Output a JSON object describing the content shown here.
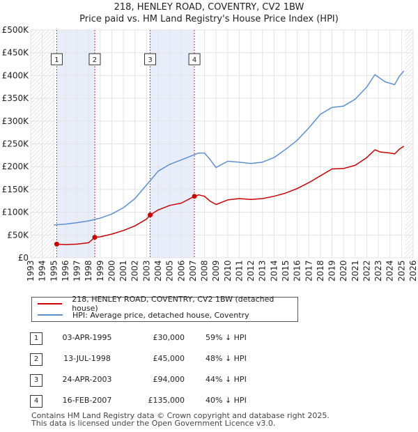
{
  "chart_data": {
    "type": "line",
    "title": "218, HENLEY ROAD, COVENTRY, CV2 1BW",
    "subtitle": "Price paid vs. HM Land Registry's House Price Index (HPI)",
    "xlim": [
      1993,
      2026
    ],
    "ylim": [
      0,
      500000
    ],
    "x_ticks": [
      1993,
      1994,
      1995,
      1996,
      1997,
      1998,
      1999,
      2000,
      2001,
      2002,
      2003,
      2004,
      2005,
      2006,
      2007,
      2008,
      2009,
      2010,
      2011,
      2012,
      2013,
      2014,
      2015,
      2016,
      2017,
      2018,
      2019,
      2020,
      2021,
      2022,
      2023,
      2024,
      2025,
      2026
    ],
    "y_ticks": [
      0,
      50000,
      100000,
      150000,
      200000,
      250000,
      300000,
      350000,
      400000,
      450000,
      500000
    ],
    "y_tick_labels": [
      "£0",
      "£50K",
      "£100K",
      "£150K",
      "£200K",
      "£250K",
      "£300K",
      "£350K",
      "£400K",
      "£450K",
      "£500K"
    ],
    "data_start": 1995.0,
    "data_end": 2025.3,
    "shaded_spans": [
      [
        1995.25,
        1998.53
      ],
      [
        2003.31,
        2007.13
      ]
    ],
    "series": [
      {
        "name": "218, HENLEY ROAD, COVENTRY, CV2 1BW (detached house)",
        "color": "#cc0000",
        "points": [
          [
            1995.25,
            30000
          ],
          [
            1996.0,
            29000
          ],
          [
            1997.0,
            30000
          ],
          [
            1998.0,
            33000
          ],
          [
            1998.53,
            45000
          ],
          [
            1999.0,
            46000
          ],
          [
            2000.0,
            52000
          ],
          [
            2001.0,
            60000
          ],
          [
            2002.0,
            70000
          ],
          [
            2003.0,
            85000
          ],
          [
            2003.31,
            94000
          ],
          [
            2004.0,
            105000
          ],
          [
            2005.0,
            115000
          ],
          [
            2006.0,
            120000
          ],
          [
            2007.13,
            135000
          ],
          [
            2007.5,
            138000
          ],
          [
            2008.0,
            135000
          ],
          [
            2008.5,
            124000
          ],
          [
            2009.0,
            117000
          ],
          [
            2009.5,
            122000
          ],
          [
            2010.0,
            127000
          ],
          [
            2011.0,
            130000
          ],
          [
            2012.0,
            128000
          ],
          [
            2013.0,
            130000
          ],
          [
            2014.0,
            135000
          ],
          [
            2015.0,
            142000
          ],
          [
            2016.0,
            152000
          ],
          [
            2017.0,
            165000
          ],
          [
            2018.0,
            180000
          ],
          [
            2019.0,
            195000
          ],
          [
            2020.0,
            196000
          ],
          [
            2021.0,
            203000
          ],
          [
            2022.0,
            220000
          ],
          [
            2022.7,
            237000
          ],
          [
            2023.2,
            232000
          ],
          [
            2023.6,
            231000
          ],
          [
            2024.0,
            230000
          ],
          [
            2024.4,
            228000
          ],
          [
            2024.8,
            238000
          ],
          [
            2025.2,
            245000
          ]
        ],
        "markers": [
          [
            1995.25,
            30000
          ],
          [
            1998.53,
            45000
          ],
          [
            2003.31,
            94000
          ],
          [
            2007.13,
            135000
          ]
        ]
      },
      {
        "name": "HPI: Average price, detached house, Coventry",
        "color": "#5b8fd1",
        "points": [
          [
            1995.0,
            72000
          ],
          [
            1996.0,
            74000
          ],
          [
            1997.0,
            77000
          ],
          [
            1998.0,
            81000
          ],
          [
            1999.0,
            87000
          ],
          [
            2000.0,
            96000
          ],
          [
            2001.0,
            110000
          ],
          [
            2002.0,
            130000
          ],
          [
            2003.0,
            160000
          ],
          [
            2004.0,
            190000
          ],
          [
            2005.0,
            205000
          ],
          [
            2006.0,
            215000
          ],
          [
            2007.0,
            225000
          ],
          [
            2007.5,
            230000
          ],
          [
            2008.0,
            230000
          ],
          [
            2008.5,
            215000
          ],
          [
            2009.0,
            198000
          ],
          [
            2009.5,
            205000
          ],
          [
            2010.0,
            212000
          ],
          [
            2011.0,
            210000
          ],
          [
            2012.0,
            207000
          ],
          [
            2013.0,
            210000
          ],
          [
            2014.0,
            220000
          ],
          [
            2015.0,
            238000
          ],
          [
            2016.0,
            258000
          ],
          [
            2017.0,
            285000
          ],
          [
            2018.0,
            315000
          ],
          [
            2019.0,
            330000
          ],
          [
            2020.0,
            333000
          ],
          [
            2021.0,
            348000
          ],
          [
            2022.0,
            375000
          ],
          [
            2022.7,
            402000
          ],
          [
            2023.2,
            393000
          ],
          [
            2023.6,
            386000
          ],
          [
            2024.0,
            383000
          ],
          [
            2024.4,
            380000
          ],
          [
            2024.8,
            398000
          ],
          [
            2025.2,
            410000
          ]
        ]
      }
    ]
  },
  "legend": {
    "items": [
      {
        "label": "218, HENLEY ROAD, COVENTRY, CV2 1BW (detached house)",
        "color": "#cc0000"
      },
      {
        "label": "HPI: Average price, detached house, Coventry",
        "color": "#5b8fd1"
      }
    ]
  },
  "transactions": [
    {
      "num": "1",
      "date": "03-APR-1995",
      "price": "£30,000",
      "hpi": "59% ↓ HPI"
    },
    {
      "num": "2",
      "date": "13-JUL-1998",
      "price": "£45,000",
      "hpi": "48% ↓ HPI"
    },
    {
      "num": "3",
      "date": "24-APR-2003",
      "price": "£94,000",
      "hpi": "44% ↓ HPI"
    },
    {
      "num": "4",
      "date": "16-FEB-2007",
      "price": "£135,000",
      "hpi": "40% ↓ HPI"
    }
  ],
  "footer": {
    "line1": "Contains HM Land Registry data © Crown copyright and database right 2025.",
    "line2": "This data is licensed under the Open Government Licence v3.0."
  }
}
